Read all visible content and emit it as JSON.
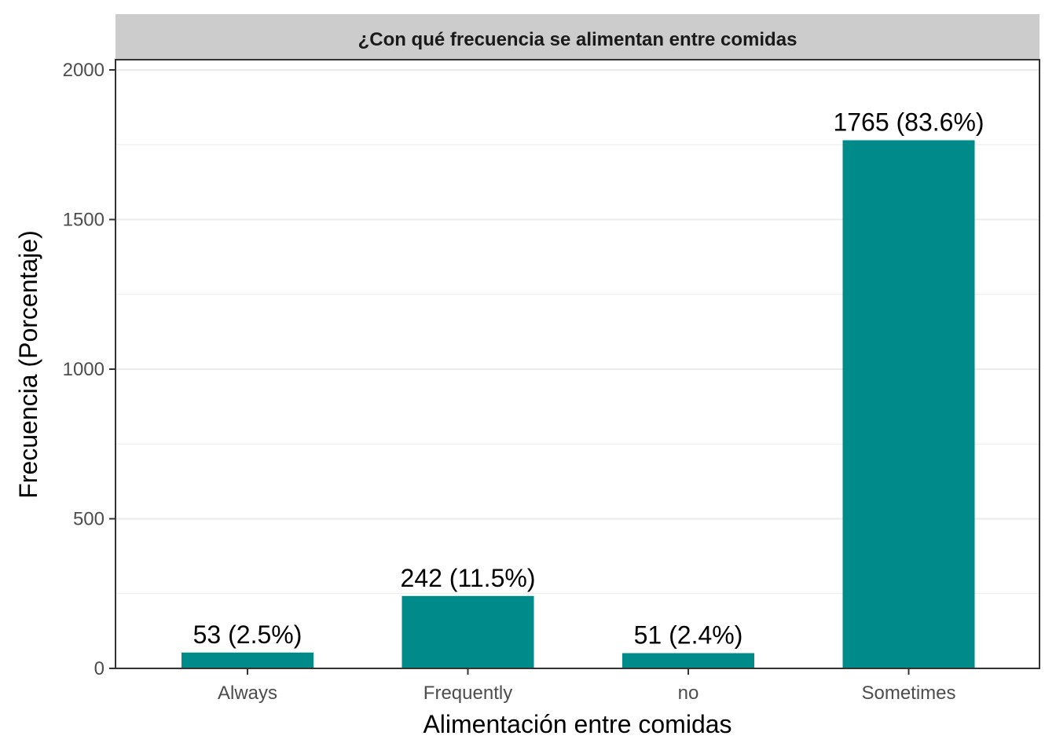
{
  "chart_data": {
    "type": "bar",
    "title": "¿Con qué frecuencia se alimentan entre comidas",
    "xlabel": "Alimentación entre comidas",
    "ylabel": "Frecuencia (Porcentaje)",
    "categories": [
      "Always",
      "Frequently",
      "no",
      "Sometimes"
    ],
    "values": [
      53,
      242,
      51,
      1765
    ],
    "labels": [
      "53 (2.5%)",
      "242 (11.5%)",
      "51 (2.4%)",
      "1765 (83.6%)"
    ],
    "ylim": [
      0,
      2000
    ],
    "yticks": [
      0,
      500,
      1000,
      1500,
      2000
    ],
    "yticks_labels": [
      "0",
      "500",
      "1000",
      "1500",
      "2000"
    ],
    "grid": true,
    "legend": "none",
    "colors": {
      "bar": "#008B8B",
      "strip": "#CCCCCC",
      "grid": "#EBEBEB",
      "border": "#333333"
    }
  }
}
